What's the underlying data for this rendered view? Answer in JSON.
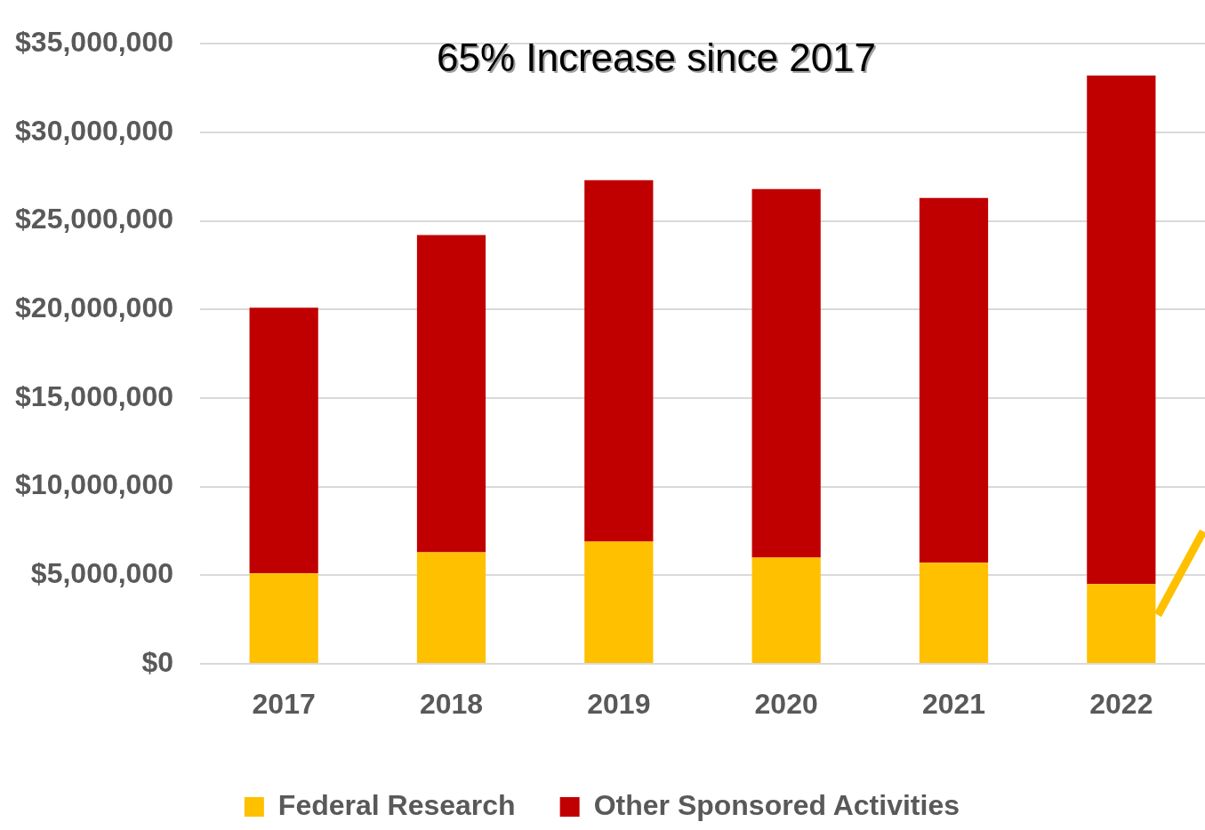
{
  "chart_data": {
    "type": "bar",
    "stacked": true,
    "categories": [
      "2017",
      "2018",
      "2019",
      "2020",
      "2021",
      "2022"
    ],
    "series": [
      {
        "name": "Federal Research",
        "color": "#ffc000",
        "values": [
          5100000.0,
          6300000.0,
          6900000.0,
          6000000.0,
          5700000.0,
          4500000.0
        ]
      },
      {
        "name": "Other Sponsored Activities",
        "color": "#c00000",
        "values": [
          15000000.0,
          17900000.0,
          20400000.0,
          20800000.0,
          20600000.0,
          28700000.0
        ]
      }
    ],
    "ylim": [
      0,
      35000000
    ],
    "yticks": [
      {
        "value": 0,
        "label": "$0"
      },
      {
        "value": 5000000,
        "label": "$5,000,000"
      },
      {
        "value": 10000000,
        "label": "$10,000,000"
      },
      {
        "value": 15000000,
        "label": "$15,000,000"
      },
      {
        "value": 20000000,
        "label": "$20,000,000"
      },
      {
        "value": 25000000,
        "label": "$25,000,000"
      },
      {
        "value": 30000000,
        "label": "$30,000,000"
      },
      {
        "value": 35000000,
        "label": "$35,000,000"
      }
    ],
    "grid": "y",
    "legend": "bottom",
    "annotations": [
      "65% Increase since 2017"
    ]
  }
}
